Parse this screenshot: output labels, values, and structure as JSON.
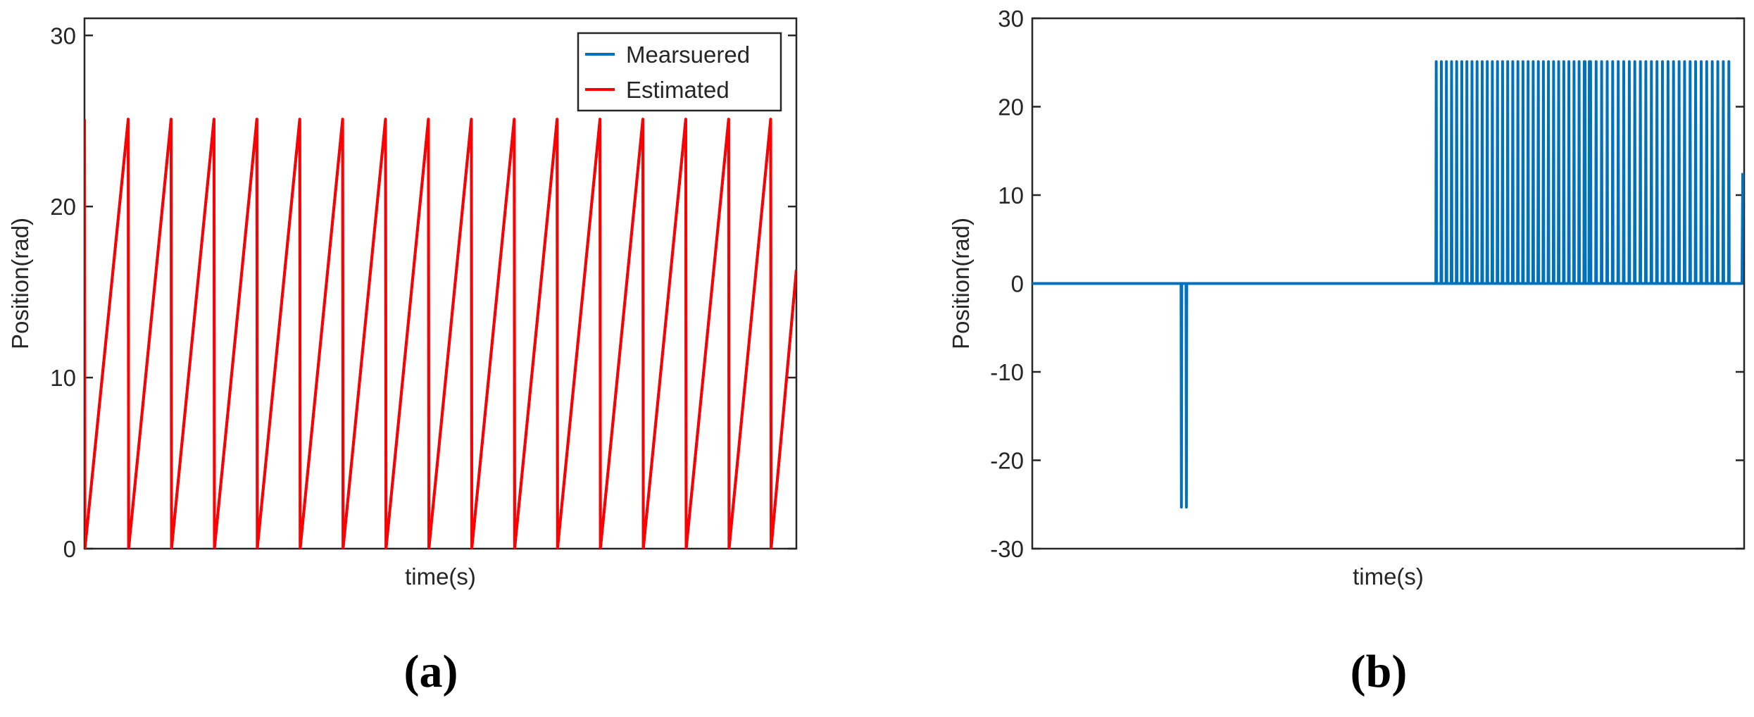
{
  "chart_data": [
    {
      "panel_label": "(a)",
      "type": "line",
      "xlabel": "time(s)",
      "ylabel": "Position(rad)",
      "xlim": [
        0,
        16.6
      ],
      "ylim": [
        0,
        31
      ],
      "yticks": [
        0,
        10,
        20,
        30
      ],
      "xticks_shown": false,
      "grid": false,
      "legend_placement": "top-right",
      "series": [
        {
          "name": "Mearsuered",
          "color": "#0072BD",
          "pattern": "sawtooth",
          "min": 0,
          "max": 25.1,
          "resets_at": [
            0.02,
            1.02,
            2.02,
            3.02,
            4.02,
            5.02,
            6.02,
            7.02,
            8.02,
            9.02,
            10.02,
            11.02,
            12.02,
            13.02,
            14.02,
            15.02,
            16.0
          ],
          "end": {
            "x": 16.6,
            "y": 16.3
          }
        },
        {
          "name": "Estimated",
          "color": "#FF0000",
          "pattern": "sawtooth",
          "min": 0,
          "max": 25.1,
          "resets_at": [
            0.02,
            1.02,
            2.02,
            3.02,
            4.02,
            5.02,
            6.02,
            7.02,
            8.02,
            9.02,
            10.02,
            11.02,
            12.02,
            13.02,
            14.02,
            15.02,
            16.0
          ],
          "end": {
            "x": 16.6,
            "y": 16.3
          }
        }
      ]
    },
    {
      "panel_label": "(b)",
      "type": "line",
      "xlabel": "time(s)",
      "ylabel": "Position(rad)",
      "xlim": [
        0,
        100
      ],
      "ylim": [
        -30,
        30
      ],
      "yticks": [
        -30,
        -20,
        -10,
        0,
        10,
        20,
        30
      ],
      "xticks_shown": false,
      "grid": false,
      "series": [
        {
          "color": "#0072BD",
          "pattern": "spikes",
          "baseline": 0,
          "spike_groups": [
            {
              "value": -25.3,
              "x": [
                20.9,
                21.6
              ]
            },
            {
              "value": 25.1,
              "x_start": 56.7,
              "x_end": 78.2,
              "count": 31
            },
            {
              "value": 25.1,
              "x_start": 77.6,
              "x_end": 97.8,
              "count": 27
            }
          ],
          "end": {
            "x": 99.8,
            "y": 12.5
          }
        }
      ]
    }
  ]
}
